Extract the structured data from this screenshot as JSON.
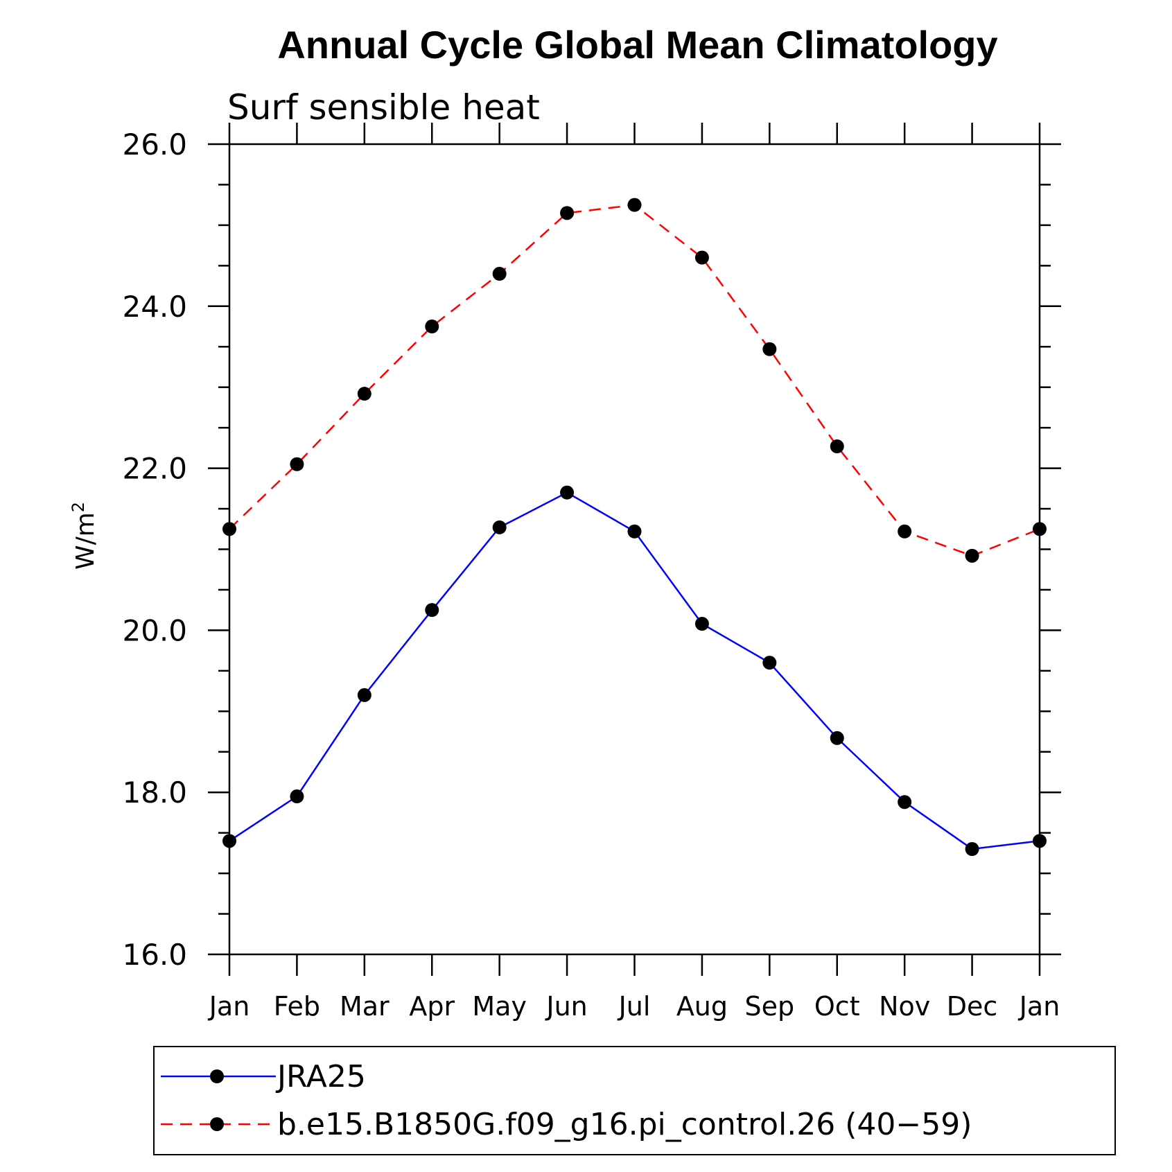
{
  "chart_data": {
    "type": "line",
    "title": "Annual Cycle Global Mean Climatology",
    "subtitle": "Surf sensible heat",
    "ylabel": "W/m",
    "ylabel_sup": "2",
    "xlabel": "",
    "categories": [
      "Jan",
      "Feb",
      "Mar",
      "Apr",
      "May",
      "Jun",
      "Jul",
      "Aug",
      "Sep",
      "Oct",
      "Nov",
      "Dec",
      "Jan"
    ],
    "ylim": [
      16.0,
      26.0
    ],
    "yticks": [
      "16.0",
      "18.0",
      "20.0",
      "22.0",
      "24.0",
      "26.0"
    ],
    "grid": false,
    "legend_position": "bottom",
    "series": [
      {
        "name": "JRA25",
        "color": "#0000ff",
        "dash": "solid",
        "values": [
          17.4,
          17.95,
          19.2,
          20.25,
          21.27,
          21.7,
          21.22,
          20.08,
          19.6,
          18.67,
          17.88,
          17.3,
          17.4
        ]
      },
      {
        "name": "b.e15.B1850G.f09_g16.pi_control.26 (40−59)",
        "color": "#ff0000",
        "dash": "dashed",
        "values": [
          21.25,
          22.05,
          22.92,
          23.75,
          24.4,
          25.15,
          25.25,
          24.6,
          23.47,
          22.27,
          21.22,
          20.92,
          21.25
        ]
      }
    ]
  }
}
